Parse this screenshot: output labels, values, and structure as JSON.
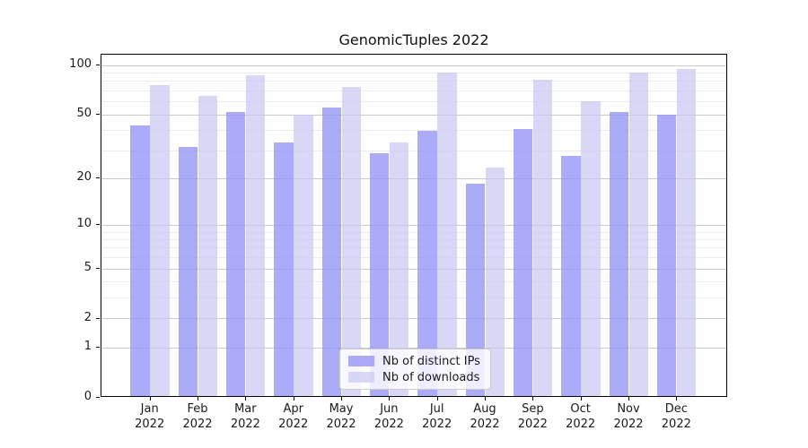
{
  "colors": {
    "distinct_ips_bar": "rgba(150,150,245,0.80)",
    "downloads_bar": "rgba(201,201,243,0.72)",
    "grid_major": "#c9c9c9",
    "grid_minor": "#ececec",
    "axis": "#000000"
  },
  "chart_data": {
    "type": "bar",
    "title": "GenomicTuples 2022",
    "y_scale": "log1p",
    "ylim": [
      0,
      116
    ],
    "grid": "horizontal",
    "legend_position": "bottom-center-inside",
    "y_ticks": [
      100,
      50,
      20,
      10,
      5,
      2,
      1,
      0
    ],
    "y_minor_ticks": [
      3,
      4,
      6,
      7,
      8,
      9,
      30,
      40,
      60,
      70,
      80,
      90
    ],
    "categories": [
      {
        "month": "Jan",
        "year": "2022"
      },
      {
        "month": "Feb",
        "year": "2022"
      },
      {
        "month": "Mar",
        "year": "2022"
      },
      {
        "month": "Apr",
        "year": "2022"
      },
      {
        "month": "May",
        "year": "2022"
      },
      {
        "month": "Jun",
        "year": "2022"
      },
      {
        "month": "Jul",
        "year": "2022"
      },
      {
        "month": "Aug",
        "year": "2022"
      },
      {
        "month": "Sep",
        "year": "2022"
      },
      {
        "month": "Oct",
        "year": "2022"
      },
      {
        "month": "Nov",
        "year": "2022"
      },
      {
        "month": "Dec",
        "year": "2022"
      }
    ],
    "series": [
      {
        "name": "Nb of distinct IPs",
        "color": "rgba(150,150,245,0.80)",
        "values": [
          42,
          31,
          51,
          33,
          54,
          28,
          39,
          18,
          40,
          27,
          51,
          49
        ]
      },
      {
        "name": "Nb of downloads",
        "color": "rgba(201,201,243,0.72)",
        "values": [
          74,
          64,
          85,
          49,
          72,
          33,
          88,
          23,
          80,
          59,
          88,
          93
        ]
      }
    ]
  }
}
